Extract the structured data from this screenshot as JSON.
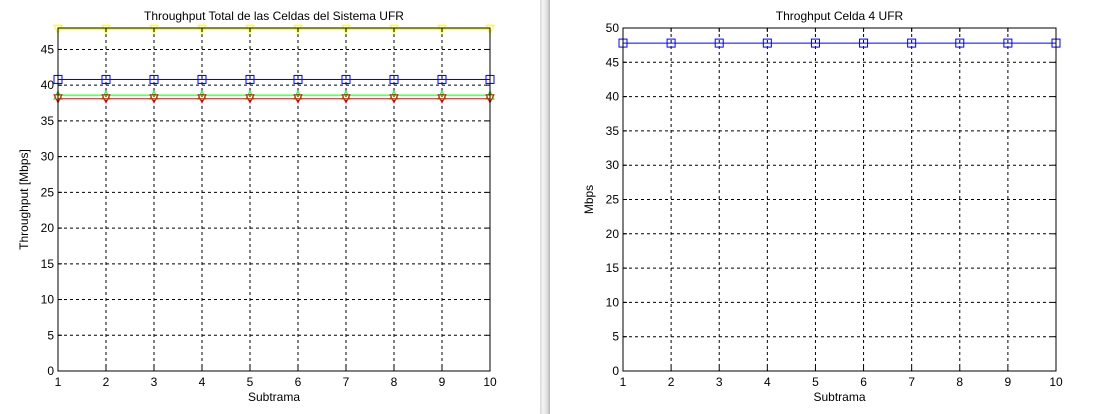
{
  "chart_data": [
    {
      "type": "line",
      "title": "Throughput Total de las Celdas del Sistema UFR",
      "xlabel": "Subtrama",
      "ylabel": "Throughput [Mbps]",
      "x": [
        1,
        2,
        3,
        4,
        5,
        6,
        7,
        8,
        9,
        10
      ],
      "xlim": [
        1,
        10
      ],
      "ylim": [
        0,
        48
      ],
      "xticks": [
        "1",
        "2",
        "3",
        "4",
        "5",
        "6",
        "7",
        "8",
        "9",
        "10"
      ],
      "yticks": [
        "0",
        "5",
        "10",
        "15",
        "20",
        "25",
        "30",
        "35",
        "40",
        "45"
      ],
      "grid": true,
      "series": [
        {
          "color": "#ffff00",
          "marker": "triangle-down",
          "values": [
            47.8,
            47.8,
            47.8,
            47.8,
            47.8,
            47.8,
            47.8,
            47.8,
            47.8,
            47.8
          ]
        },
        {
          "color": "#0000ff",
          "marker": "square",
          "values": [
            40.8,
            40.8,
            40.8,
            40.8,
            40.8,
            40.8,
            40.8,
            40.8,
            40.8,
            40.8
          ]
        },
        {
          "color": "#00ff00",
          "marker": "triangle-up",
          "values": [
            38.6,
            38.6,
            38.6,
            38.6,
            38.6,
            38.6,
            38.6,
            38.6,
            38.6,
            38.6
          ]
        },
        {
          "color": "#ff0000",
          "marker": "triangle-down",
          "values": [
            38.1,
            38.1,
            38.1,
            38.1,
            38.1,
            38.1,
            38.1,
            38.1,
            38.1,
            38.1
          ]
        }
      ]
    },
    {
      "type": "line",
      "title": "Throghput Celda 4 UFR",
      "xlabel": "Subtrama",
      "ylabel": "Mbps",
      "x": [
        1,
        2,
        3,
        4,
        5,
        6,
        7,
        8,
        9,
        10
      ],
      "xlim": [
        1,
        10
      ],
      "ylim": [
        0,
        50
      ],
      "xticks": [
        "1",
        "2",
        "3",
        "4",
        "5",
        "6",
        "7",
        "8",
        "9",
        "10"
      ],
      "yticks": [
        "0",
        "5",
        "10",
        "15",
        "20",
        "25",
        "30",
        "35",
        "40",
        "45",
        "50"
      ],
      "grid": true,
      "series": [
        {
          "color": "#0000ff",
          "marker": "square",
          "values": [
            47.8,
            47.8,
            47.8,
            47.8,
            47.8,
            47.8,
            47.8,
            47.8,
            47.8,
            47.8
          ]
        }
      ]
    }
  ]
}
